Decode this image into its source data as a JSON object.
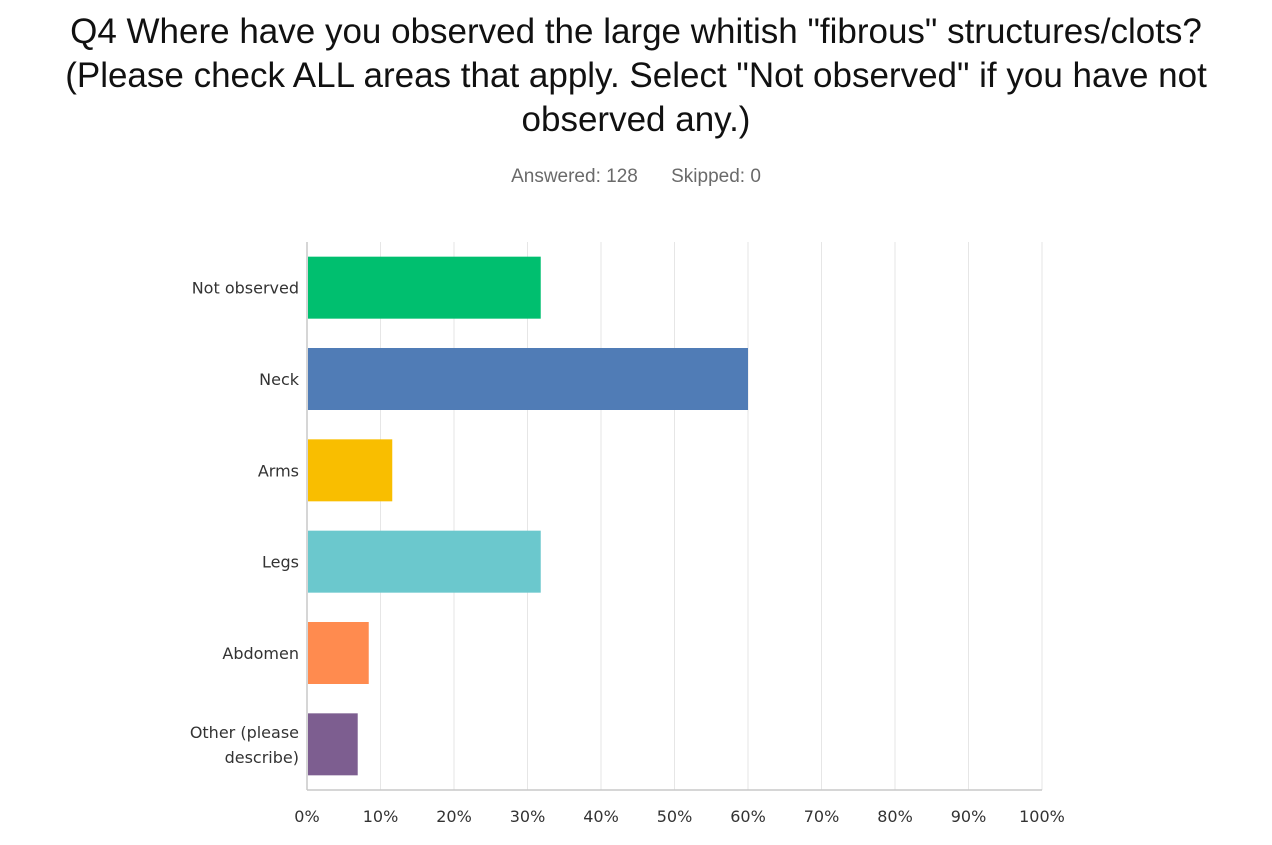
{
  "title_lines": [
    "Q4 Where have you observed the large whitish \"fibrous\" structures/clots?",
    "(Please check ALL areas that apply.  Select \"Not observed\" if you have not",
    "observed any.)"
  ],
  "answered": "Answered: 128",
  "skipped": "Skipped: 0",
  "chart_data": {
    "type": "bar",
    "orientation": "horizontal",
    "categories": [
      "Not observed",
      "Neck",
      "Arms",
      "Legs",
      "Abdomen",
      "Other (please describe)"
    ],
    "category_lines": [
      [
        "Not observed"
      ],
      [
        "Neck"
      ],
      [
        "Arms"
      ],
      [
        "Legs"
      ],
      [
        "Abdomen"
      ],
      [
        "Other (please",
        "describe)"
      ]
    ],
    "values": [
      31.8,
      60.0,
      11.6,
      31.8,
      8.4,
      6.9
    ],
    "colors": [
      "#00bf6f",
      "#507cb6",
      "#f9be00",
      "#6bc8cd",
      "#ff8b4f",
      "#7d5e90"
    ],
    "xlim": [
      0,
      100
    ],
    "ticks": [
      "0%",
      "10%",
      "20%",
      "30%",
      "40%",
      "50%",
      "60%",
      "70%",
      "80%",
      "90%",
      "100%"
    ],
    "grid": true
  }
}
